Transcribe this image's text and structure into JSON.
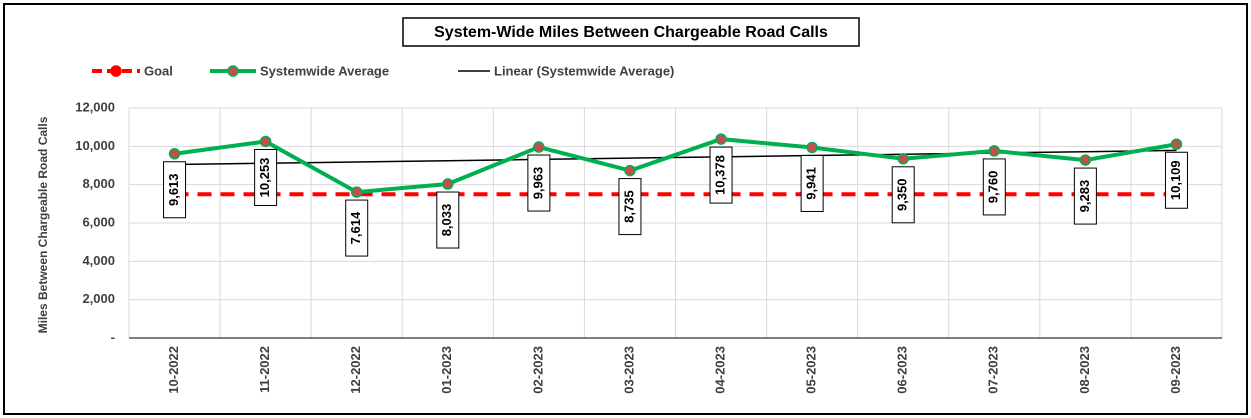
{
  "chart_data": {
    "type": "line",
    "title": "System-Wide Miles Between Chargeable Road Calls",
    "y_label": "Miles Between Chargeable Road Calls",
    "categories": [
      "10-2022",
      "11-2022",
      "12-2022",
      "01-2023",
      "02-2023",
      "03-2023",
      "04-2023",
      "05-2023",
      "06-2023",
      "07-2023",
      "08-2023",
      "09-2023"
    ],
    "series": [
      {
        "name": "Goal",
        "color": "#ff0000",
        "style": "dashed",
        "values": [
          7500,
          7500,
          7500,
          7500,
          7500,
          7500,
          7500,
          7500,
          7500,
          7500,
          7500,
          7500
        ]
      },
      {
        "name": "Systemwide Average",
        "color": "#00b050",
        "style": "solid",
        "values": [
          9613,
          10253,
          7614,
          8033,
          9963,
          8735,
          10378,
          9941,
          9350,
          9760,
          9283,
          10109
        ],
        "value_labels": [
          "9,613",
          "10,253",
          "7,614",
          "8,033",
          "9,963",
          "8,735",
          "10,378",
          "9,941",
          "9,350",
          "9,760",
          "9,283",
          "10,109"
        ]
      },
      {
        "name": "Linear (Systemwide Average)",
        "color": "#000000",
        "style": "thin",
        "values": [
          9050,
          9117,
          9184,
          9251,
          9318,
          9385,
          9452,
          9519,
          9586,
          9653,
          9720,
          9787
        ]
      }
    ],
    "ylim": [
      0,
      12000
    ],
    "yticks": [
      {
        "value": 0,
        "label": "-"
      },
      {
        "value": 2000,
        "label": "2,000"
      },
      {
        "value": 4000,
        "label": "4,000"
      },
      {
        "value": 6000,
        "label": "6,000"
      },
      {
        "value": 8000,
        "label": "8,000"
      },
      {
        "value": 10000,
        "label": "10,000"
      },
      {
        "value": 12000,
        "label": "12,000"
      }
    ],
    "grid": true,
    "legend": "top"
  }
}
